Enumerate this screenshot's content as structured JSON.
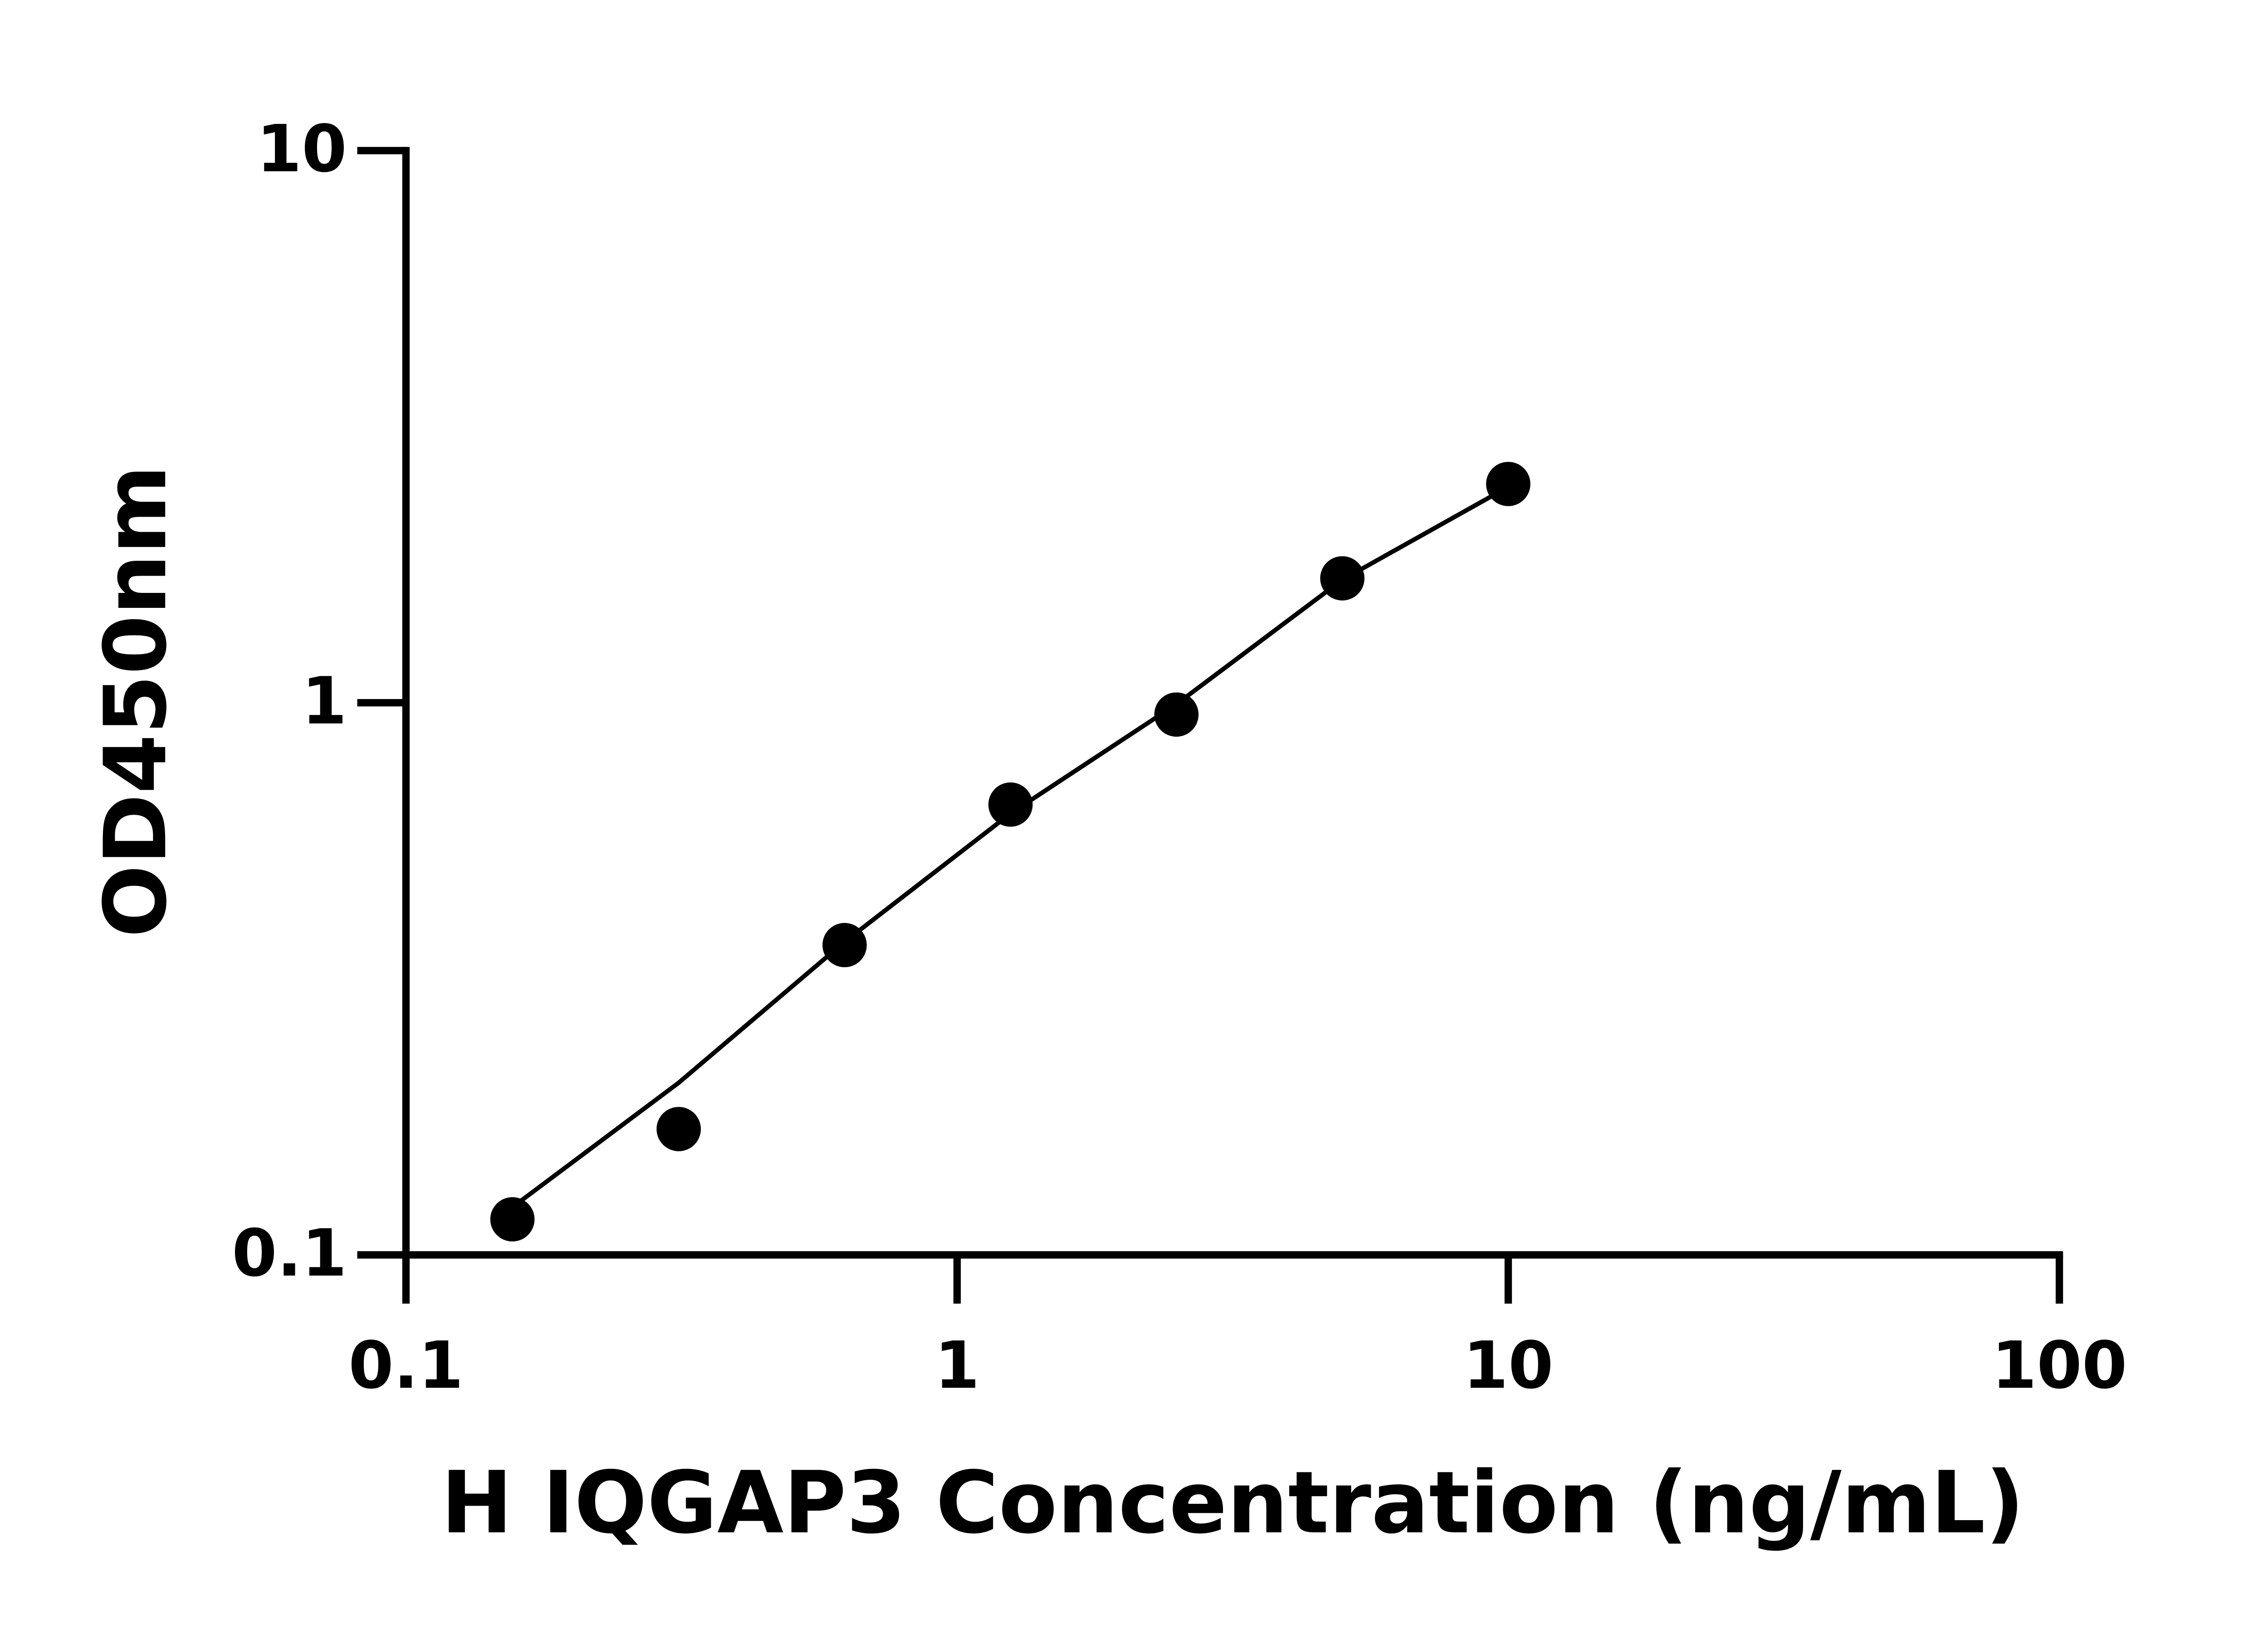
{
  "chart_data": {
    "type": "scatter",
    "x_label": "H IQGAP3 Concentration (ng/mL)",
    "y_label": "OD450nm",
    "x": [
      0.156,
      0.3125,
      0.625,
      1.25,
      2.5,
      5,
      10
    ],
    "values": [
      0.116,
      0.169,
      0.364,
      0.654,
      0.952,
      1.68,
      2.49
    ],
    "color": "#000000",
    "fit": {
      "x": [
        0.156,
        0.3125,
        0.625,
        1.25,
        2.5,
        5,
        10
      ],
      "values": [
        0.122,
        0.205,
        0.369,
        0.63,
        0.994,
        1.67,
        2.46
      ],
      "color": "#000000"
    },
    "xscale": "log",
    "yscale": "log",
    "xlim": [
      0.1,
      100
    ],
    "ylim": [
      0.1,
      10
    ],
    "xticks": [
      0.1,
      1,
      10,
      100
    ],
    "yticks": [
      0.1,
      1,
      10
    ]
  }
}
